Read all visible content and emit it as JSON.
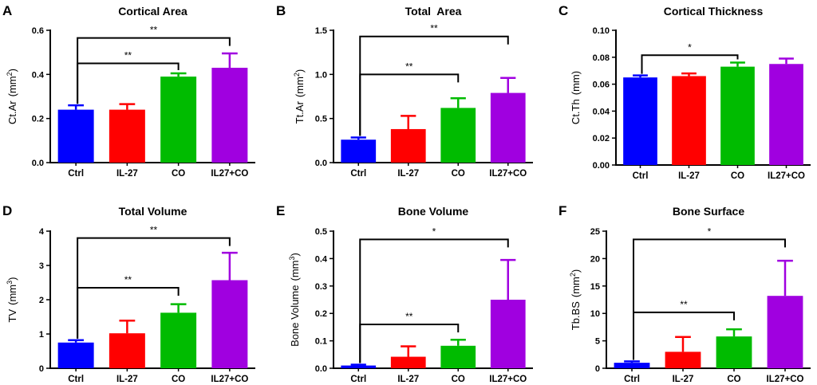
{
  "chart_data": [
    {
      "letter": "A",
      "type": "bar",
      "title": "Cortical Area",
      "ylabel": "Ct.Ar",
      "unit": "(mm",
      "unit_sup": "2",
      "unit_end": ")",
      "categories": [
        "Ctrl",
        "IL-27",
        "CO",
        "IL27+CO"
      ],
      "values": [
        0.24,
        0.24,
        0.39,
        0.43
      ],
      "errors": [
        0.02,
        0.025,
        0.015,
        0.065
      ],
      "ylim": [
        0,
        0.6
      ],
      "yticks": [
        0.0,
        0.2,
        0.4,
        0.6
      ],
      "yticklabels": [
        "0.0",
        "0.2",
        "0.4",
        "0.6"
      ],
      "colors": [
        "#0000ff",
        "#ff0000",
        "#00bb00",
        "#a000e0"
      ],
      "significance": [
        {
          "from": 0,
          "to": 2,
          "label": "**",
          "level": 0.45
        },
        {
          "from": 0,
          "to": 3,
          "label": "**",
          "level": 0.565
        }
      ]
    },
    {
      "letter": "B",
      "type": "bar",
      "title": "Total  Area",
      "ylabel": "Tt.Ar",
      "unit": "(mm",
      "unit_sup": "2",
      "unit_end": ")",
      "categories": [
        "Ctrl",
        "IL-27",
        "CO",
        "IL27+CO"
      ],
      "values": [
        0.26,
        0.38,
        0.62,
        0.79
      ],
      "errors": [
        0.025,
        0.15,
        0.11,
        0.17
      ],
      "ylim": [
        0,
        1.5
      ],
      "yticks": [
        0.0,
        0.5,
        1.0,
        1.5
      ],
      "yticklabels": [
        "0.0",
        "0.5",
        "1.0",
        "1.5"
      ],
      "colors": [
        "#0000ff",
        "#ff0000",
        "#00bb00",
        "#a000e0"
      ],
      "significance": [
        {
          "from": 0,
          "to": 2,
          "label": "**",
          "level": 1.0
        },
        {
          "from": 0,
          "to": 3,
          "label": "**",
          "level": 1.43
        }
      ]
    },
    {
      "letter": "C",
      "type": "bar",
      "title": "Cortical Thickness",
      "ylabel": "Ct.Th",
      "unit": "(mm)",
      "unit_sup": "",
      "unit_end": "",
      "categories": [
        "Ctrl",
        "IL-27",
        "CO",
        "IL27+CO"
      ],
      "values": [
        0.065,
        0.066,
        0.073,
        0.075
      ],
      "errors": [
        0.0015,
        0.002,
        0.003,
        0.004
      ],
      "ylim": [
        0,
        0.1
      ],
      "yticks": [
        0.0,
        0.02,
        0.04,
        0.06,
        0.08,
        0.1
      ],
      "yticklabels": [
        "0.00",
        "0.02",
        "0.04",
        "0.06",
        "0.08",
        "0.10"
      ],
      "colors": [
        "#0000ff",
        "#ff0000",
        "#00bb00",
        "#a000e0"
      ],
      "significance": [
        {
          "from": 0,
          "to": 2,
          "label": "*",
          "level": 0.0815
        }
      ]
    },
    {
      "letter": "D",
      "type": "bar",
      "title": "Total Volume",
      "ylabel": "TV",
      "unit": "(mm",
      "unit_sup": "3",
      "unit_end": ")",
      "categories": [
        "Ctrl",
        "IL-27",
        "CO",
        "IL27+CO"
      ],
      "values": [
        0.75,
        1.02,
        1.62,
        2.57
      ],
      "errors": [
        0.07,
        0.37,
        0.25,
        0.8
      ],
      "ylim": [
        0,
        4
      ],
      "yticks": [
        0,
        1,
        2,
        3,
        4
      ],
      "yticklabels": [
        "0",
        "1",
        "2",
        "3",
        "4"
      ],
      "colors": [
        "#0000ff",
        "#ff0000",
        "#00bb00",
        "#a000e0"
      ],
      "significance": [
        {
          "from": 0,
          "to": 2,
          "label": "**",
          "level": 2.35
        },
        {
          "from": 0,
          "to": 3,
          "label": "**",
          "level": 3.8
        }
      ]
    },
    {
      "letter": "E",
      "type": "bar",
      "title": "Bone Volume",
      "ylabel": "Bone Volume",
      "unit": "(mm",
      "unit_sup": "3",
      "unit_end": ")",
      "categories": [
        "Ctrl",
        "IL-27",
        "CO",
        "IL27+CO"
      ],
      "values": [
        0.01,
        0.042,
        0.082,
        0.25
      ],
      "errors": [
        0.003,
        0.038,
        0.022,
        0.145
      ],
      "ylim": [
        0,
        0.5
      ],
      "yticks": [
        0.0,
        0.1,
        0.2,
        0.3,
        0.4,
        0.5
      ],
      "yticklabels": [
        "0.0",
        "0.1",
        "0.2",
        "0.3",
        "0.4",
        "0.5"
      ],
      "colors": [
        "#0000ff",
        "#ff0000",
        "#00bb00",
        "#a000e0"
      ],
      "significance": [
        {
          "from": 0,
          "to": 2,
          "label": "**",
          "level": 0.16
        },
        {
          "from": 0,
          "to": 3,
          "label": "*",
          "level": 0.47
        }
      ]
    },
    {
      "letter": "F",
      "type": "bar",
      "title": "Bone Surface",
      "ylabel": "Tb.BS",
      "unit": "(mm",
      "unit_sup": "2",
      "unit_end": ")",
      "categories": [
        "Ctrl",
        "IL-27",
        "CO",
        "IL27+CO"
      ],
      "values": [
        1.0,
        3.0,
        5.8,
        13.2
      ],
      "errors": [
        0.25,
        2.7,
        1.3,
        6.4
      ],
      "ylim": [
        0,
        25
      ],
      "yticks": [
        0,
        5,
        10,
        15,
        20,
        25
      ],
      "yticklabels": [
        "0",
        "5",
        "10",
        "15",
        "20",
        "25"
      ],
      "colors": [
        "#0000ff",
        "#ff0000",
        "#00bb00",
        "#a000e0"
      ],
      "significance": [
        {
          "from": 0,
          "to": 2,
          "label": "**",
          "level": 10.2
        },
        {
          "from": 0,
          "to": 3,
          "label": "*",
          "level": 23.5
        }
      ]
    }
  ]
}
